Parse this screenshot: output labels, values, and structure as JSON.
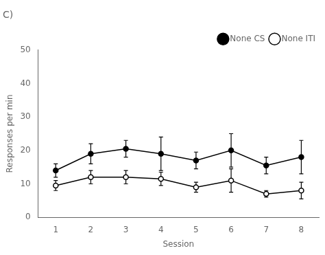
{
  "chart_data": {
    "type": "line",
    "title": "C)",
    "xlabel": "Session",
    "ylabel": "Responses per min",
    "x": [
      1,
      2,
      3,
      4,
      5,
      6,
      7,
      8
    ],
    "xlim": [
      0.5,
      8.5
    ],
    "xticks": [
      1,
      2,
      3,
      4,
      5,
      6,
      7,
      8
    ],
    "ylim": [
      0,
      50
    ],
    "yticks": [
      0,
      10,
      20,
      30,
      40,
      50
    ],
    "grid": false,
    "legend": "upper right",
    "series": [
      {
        "name": "None CS",
        "color": "#000000",
        "marker": "circle",
        "values": [
          14.0,
          19.0,
          20.5,
          19.0,
          17.0,
          20.0,
          15.5,
          18.0
        ],
        "errors": [
          2.0,
          3.0,
          2.5,
          5.0,
          2.5,
          5.0,
          2.5,
          5.0
        ]
      },
      {
        "name": "None ITI",
        "color": "#000000",
        "marker": "open circle",
        "values": [
          9.5,
          12.0,
          12.0,
          11.5,
          9.0,
          11.0,
          7.0,
          8.0
        ],
        "errors": [
          1.5,
          2.0,
          2.0,
          2.0,
          1.5,
          3.5,
          1.0,
          2.5
        ]
      }
    ]
  }
}
